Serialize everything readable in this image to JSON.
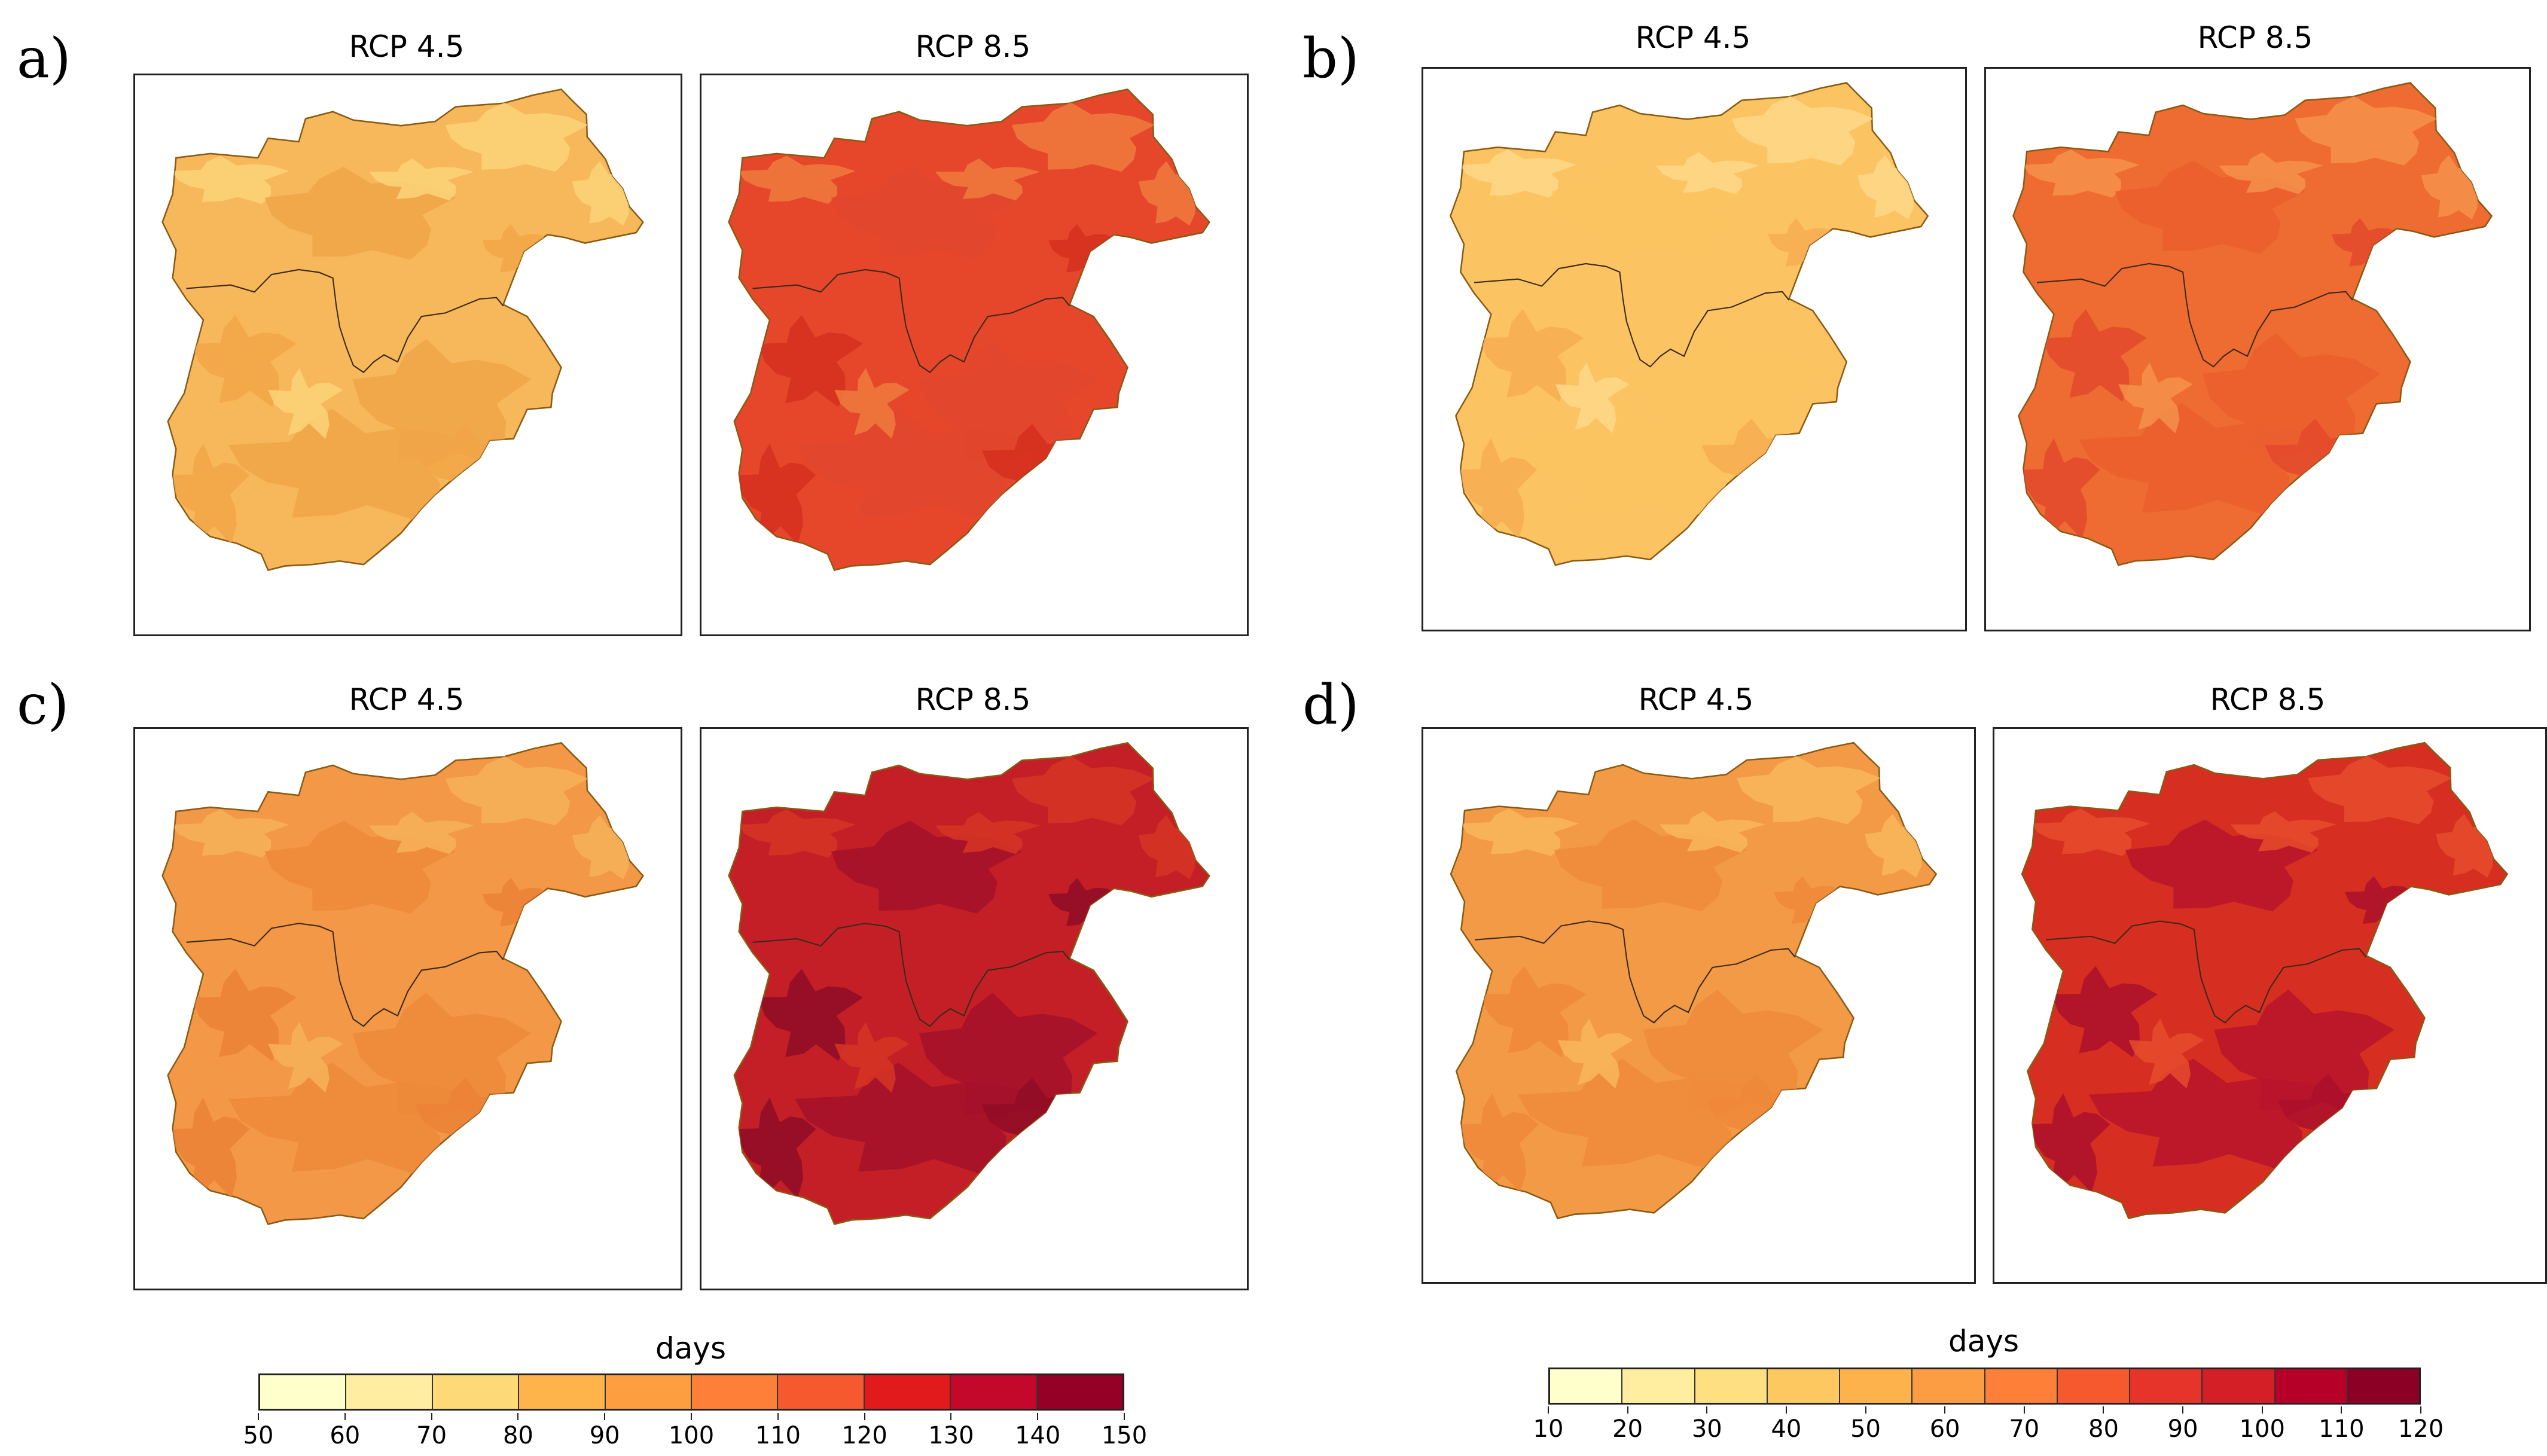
{
  "panels": [
    {
      "label": "a)",
      "scenarios": [
        {
          "name": "RCP 4.5",
          "fill": "#f6b85a",
          "patch": "#fbd37a",
          "hot": "#f2a447",
          "inner": "#f0a448"
        },
        {
          "name": "RCP 8.5",
          "fill": "#e6472b",
          "patch": "#ef7b3d",
          "hot": "#d52f1e",
          "inner": "#e0472d"
        }
      ]
    },
    {
      "label": "b)",
      "scenarios": [
        {
          "name": "RCP 4.5",
          "fill": "#fbc362",
          "patch": "#fdd889",
          "hot": "#f7ad52",
          "inner": "#fbc362"
        },
        {
          "name": "RCP 8.5",
          "fill": "#ee6b31",
          "patch": "#f5904a",
          "hot": "#e3492b",
          "inner": "#eb5e2e"
        }
      ]
    },
    {
      "label": "c)",
      "scenarios": [
        {
          "name": "RCP 4.5",
          "fill": "#f39846",
          "patch": "#f6b159",
          "hot": "#eb8137",
          "inner": "#ec8a3a"
        },
        {
          "name": "RCP 8.5",
          "fill": "#c41f26",
          "patch": "#d63524",
          "hot": "#8f0d27",
          "inner": "#a4122a"
        }
      ]
    },
    {
      "label": "d)",
      "scenarios": [
        {
          "name": "RCP 4.5",
          "fill": "#f39a47",
          "patch": "#f8b65a",
          "hot": "#ee8839",
          "inner": "#ee8b3b"
        },
        {
          "name": "RCP 8.5",
          "fill": "#d62e20",
          "patch": "#e64b2b",
          "hot": "#ac0f2b",
          "inner": "#b8142b"
        }
      ]
    }
  ],
  "colorbars": [
    {
      "title": "days",
      "ticks": [
        "50",
        "60",
        "70",
        "80",
        "90",
        "100",
        "110",
        "120",
        "130",
        "140",
        "150"
      ],
      "colors": [
        "#ffffcc",
        "#ffeea2",
        "#fed977",
        "#feb44a",
        "#fd9f41",
        "#fd7f38",
        "#f6592d",
        "#e31a1c",
        "#c3082b",
        "#950026"
      ]
    },
    {
      "title": "days",
      "ticks": [
        "10",
        "20",
        "30",
        "40",
        "50",
        "60",
        "70",
        "80",
        "90",
        "100",
        "110",
        "120"
      ],
      "colors": [
        "#ffffcc",
        "#ffee9f",
        "#fee081",
        "#fec860",
        "#feb24c",
        "#fd9d43",
        "#fd7f38",
        "#f6592d",
        "#e7342a",
        "#d51f26",
        "#b70027",
        "#8d0026"
      ]
    }
  ]
}
